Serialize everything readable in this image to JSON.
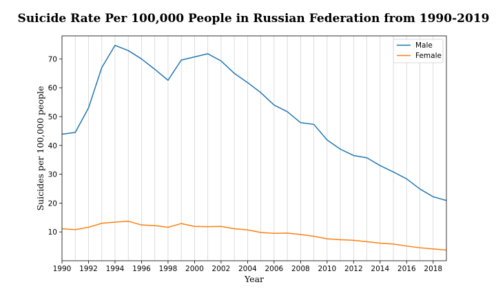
{
  "chart_data": {
    "type": "line",
    "title": "Suicide Rate Per 100,000 People in Russian Federation from 1990-2019",
    "xlabel": "Year",
    "ylabel": "Suicides per 100,000 people",
    "xlim": [
      1990,
      2019
    ],
    "ylim": [
      0,
      78
    ],
    "xticks": [
      1990,
      1992,
      1994,
      1996,
      1998,
      2000,
      2002,
      2004,
      2006,
      2008,
      2010,
      2012,
      2014,
      2016,
      2018
    ],
    "yticks": [
      10,
      20,
      30,
      40,
      50,
      60,
      70
    ],
    "grid": "vertical",
    "legend_position": "top-right",
    "x": [
      1990,
      1991,
      1992,
      1993,
      1994,
      1995,
      1996,
      1997,
      1998,
      1999,
      2000,
      2001,
      2002,
      2003,
      2004,
      2005,
      2006,
      2007,
      2008,
      2009,
      2010,
      2011,
      2012,
      2013,
      2014,
      2015,
      2016,
      2017,
      2018,
      2019
    ],
    "series": [
      {
        "name": "Male",
        "color": "#1f77b4",
        "values": [
          43.9,
          44.5,
          53.0,
          67.0,
          74.7,
          72.9,
          70.0,
          66.4,
          62.6,
          69.6,
          70.7,
          71.8,
          69.3,
          65.0,
          61.8,
          58.3,
          54.0,
          51.7,
          47.9,
          47.3,
          41.9,
          38.7,
          36.5,
          35.7,
          33.0,
          30.8,
          28.4,
          24.9,
          22.2,
          20.9
        ]
      },
      {
        "name": "Female",
        "color": "#ff7f0e",
        "values": [
          11.1,
          10.8,
          11.6,
          13.0,
          13.4,
          13.7,
          12.4,
          12.2,
          11.6,
          12.9,
          11.9,
          11.8,
          11.9,
          11.1,
          10.7,
          9.8,
          9.5,
          9.6,
          9.1,
          8.5,
          7.6,
          7.3,
          7.1,
          6.6,
          6.1,
          5.8,
          5.1,
          4.5,
          4.1,
          3.7
        ]
      }
    ]
  }
}
